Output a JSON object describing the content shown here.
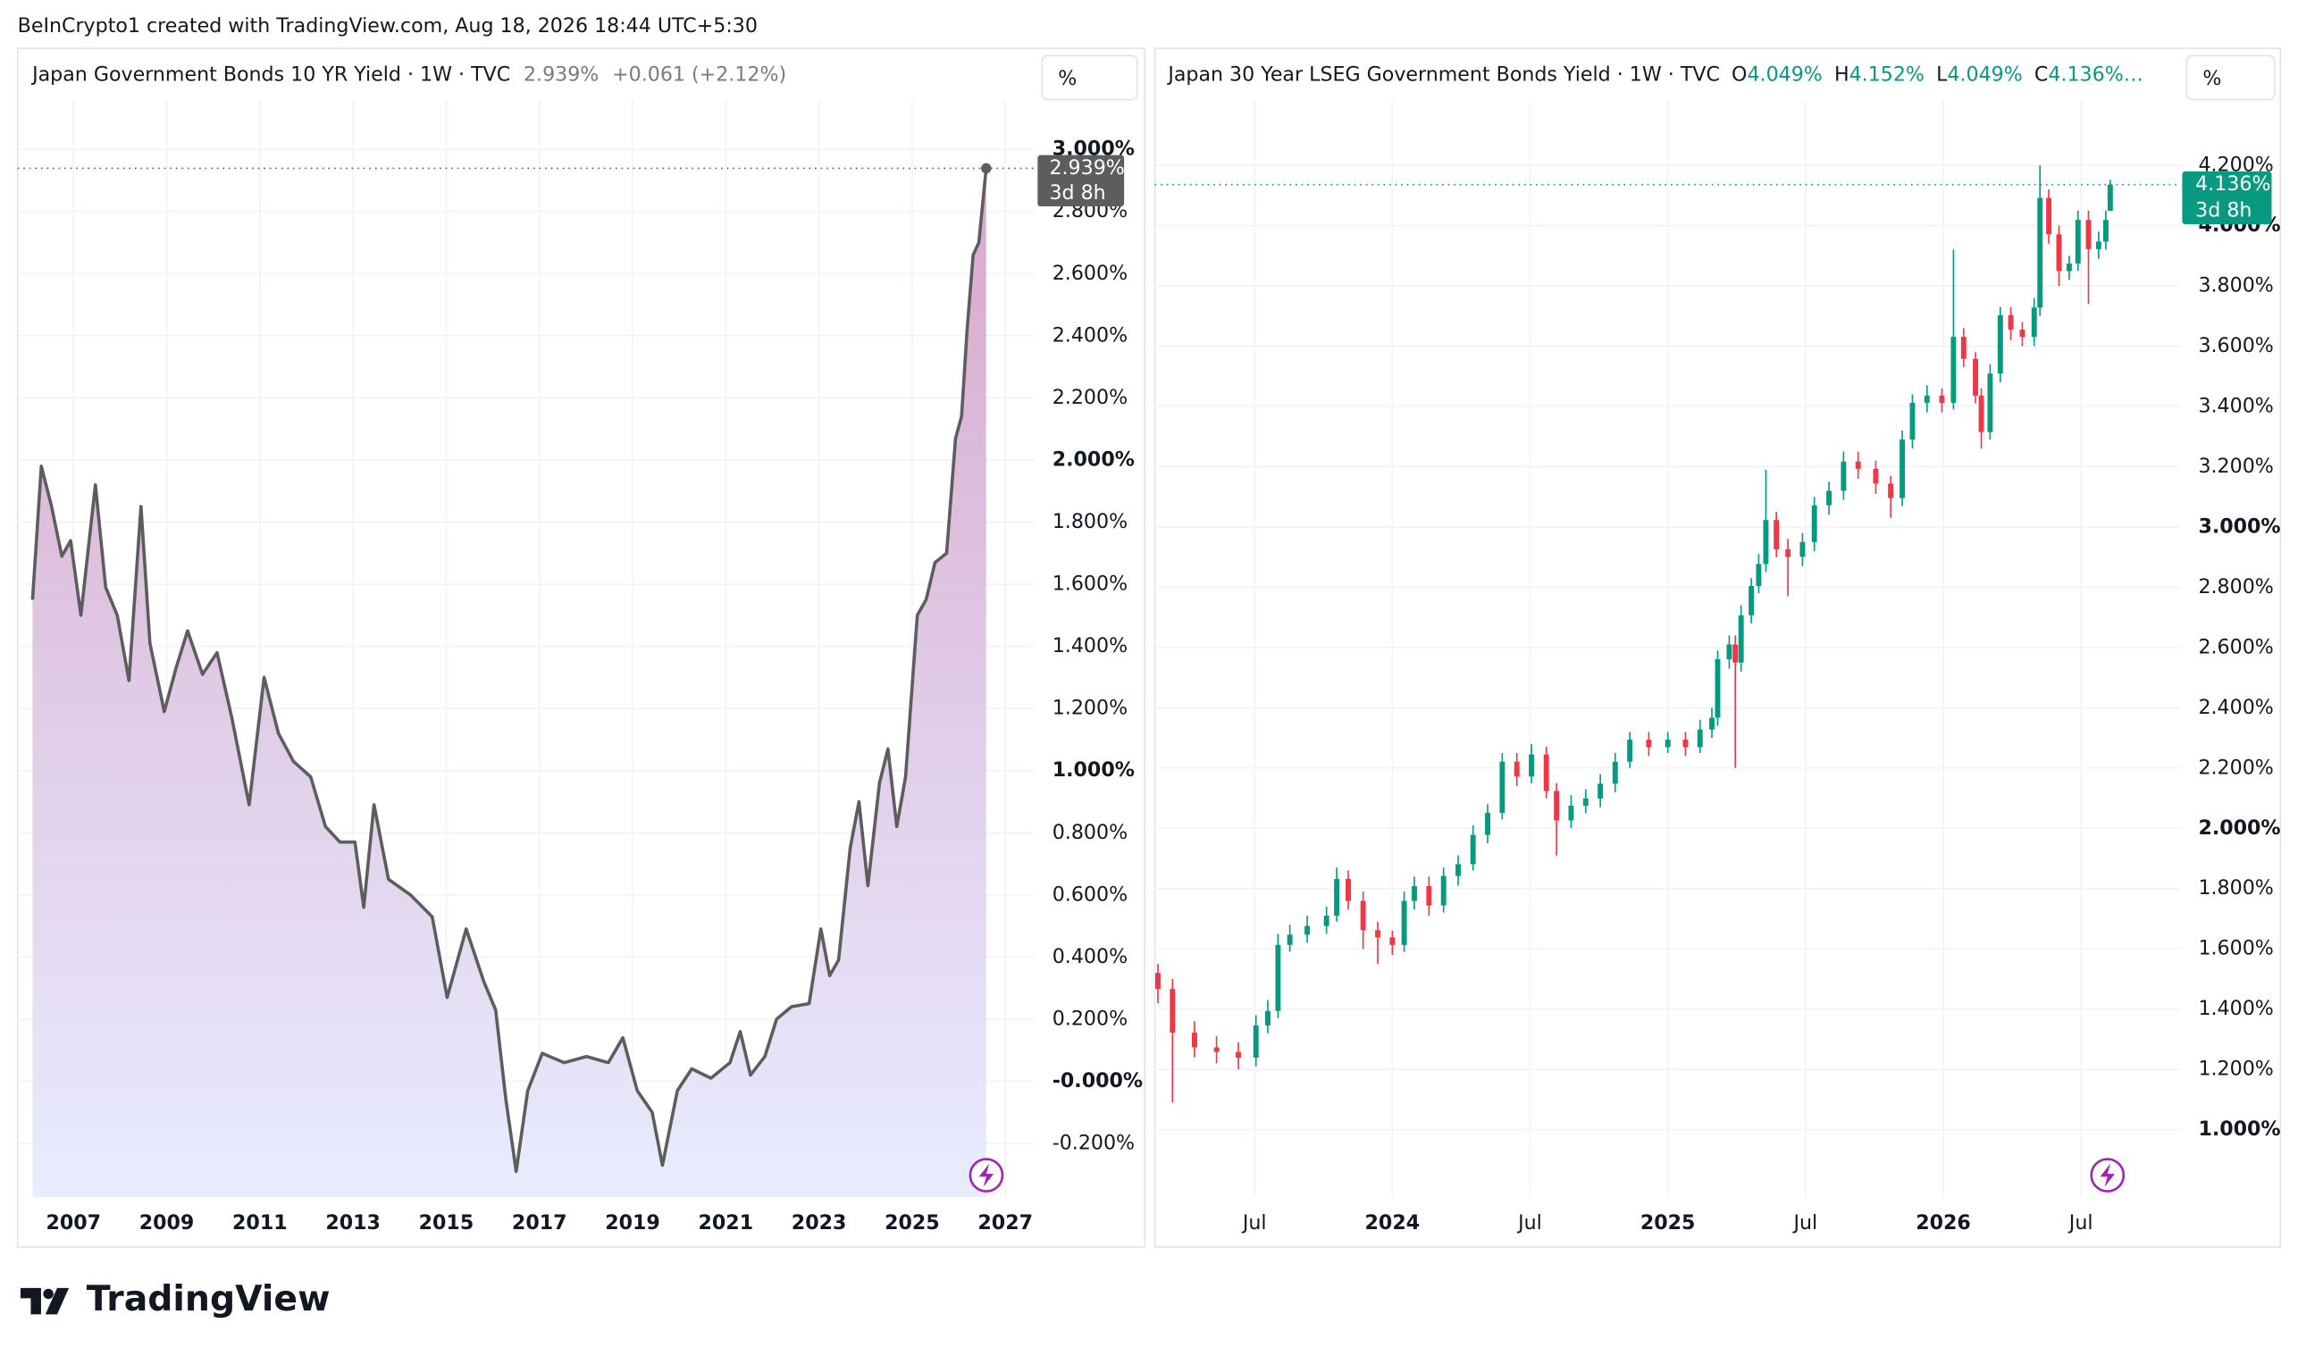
{
  "header": {
    "text": "BeInCrypto1 created with TradingView.com, Aug 18, 2026 18:44 UTC+5:30"
  },
  "footer": {
    "brand": "TradingView"
  },
  "chart_data": [
    {
      "type": "area",
      "title": "Japan Government Bonds 10 YR Yield · 1W · TVC",
      "price_label": "2.939%",
      "change": "+0.061 (+2.12%)",
      "countdown": "3d 8h",
      "unit_button": "%",
      "color": "#5d5d5d",
      "area_colors": [
        "#d8a8cc",
        "#e8ecff"
      ],
      "label_color": "#5d5d5d",
      "grid": true,
      "x": [
        2006.12,
        2006.31,
        2006.53,
        2006.75,
        2006.94,
        2007.16,
        2007.47,
        2007.69,
        2007.94,
        2008.19,
        2008.45,
        2008.64,
        2008.95,
        2009.2,
        2009.45,
        2009.77,
        2010.08,
        2010.4,
        2010.77,
        2011.09,
        2011.4,
        2011.72,
        2012.09,
        2012.41,
        2012.72,
        2013.04,
        2013.23,
        2013.45,
        2013.76,
        2014.23,
        2014.7,
        2015.02,
        2015.43,
        2015.81,
        2016.06,
        2016.28,
        2016.5,
        2016.75,
        2017.06,
        2017.53,
        2018.01,
        2018.48,
        2018.79,
        2019.1,
        2019.42,
        2019.64,
        2019.96,
        2020.27,
        2020.68,
        2021.09,
        2021.31,
        2021.53,
        2021.84,
        2022.09,
        2022.41,
        2022.79,
        2023.04,
        2023.23,
        2023.42,
        2023.67,
        2023.86,
        2024.05,
        2024.3,
        2024.48,
        2024.67,
        2024.86,
        2025.11,
        2025.3,
        2025.49,
        2025.74,
        2025.93,
        2026.06,
        2026.18,
        2026.31,
        2026.43,
        2026.59
      ],
      "values": [
        1.55,
        1.98,
        1.85,
        1.69,
        1.74,
        1.5,
        1.92,
        1.59,
        1.5,
        1.29,
        1.85,
        1.41,
        1.19,
        1.33,
        1.45,
        1.31,
        1.38,
        1.17,
        0.89,
        1.3,
        1.12,
        1.03,
        0.98,
        0.82,
        0.77,
        0.77,
        0.56,
        0.89,
        0.65,
        0.6,
        0.53,
        0.27,
        0.49,
        0.32,
        0.23,
        -0.06,
        -0.29,
        -0.03,
        0.09,
        0.06,
        0.08,
        0.06,
        0.14,
        -0.03,
        -0.1,
        -0.27,
        -0.03,
        0.04,
        0.01,
        0.06,
        0.16,
        0.02,
        0.08,
        0.2,
        0.24,
        0.25,
        0.49,
        0.34,
        0.39,
        0.75,
        0.9,
        0.63,
        0.96,
        1.07,
        0.82,
        0.98,
        1.5,
        1.55,
        1.67,
        1.7,
        2.07,
        2.14,
        2.42,
        2.66,
        2.7,
        2.939
      ],
      "xlim": [
        2005.8,
        2027.63
      ],
      "xticks": [
        2007,
        2009,
        2011,
        2013,
        2015,
        2017,
        2019,
        2021,
        2023,
        2025,
        2027
      ],
      "ylim": [
        -0.373,
        3.16
      ],
      "yticks": [
        {
          "value": -0.2,
          "label": "-0.200%"
        },
        {
          "value": 0,
          "label": "-0.000%"
        },
        {
          "value": 0.2,
          "label": "0.200%"
        },
        {
          "value": 0.4,
          "label": "0.400%"
        },
        {
          "value": 0.6,
          "label": "0.600%"
        },
        {
          "value": 0.8,
          "label": "0.800%"
        },
        {
          "value": 1.0,
          "label": "1.000%"
        },
        {
          "value": 1.2,
          "label": "1.200%"
        },
        {
          "value": 1.4,
          "label": "1.400%"
        },
        {
          "value": 1.6,
          "label": "1.600%"
        },
        {
          "value": 1.8,
          "label": "1.800%"
        },
        {
          "value": 2.0,
          "label": "2.000%"
        },
        {
          "value": 2.2,
          "label": "2.200%"
        },
        {
          "value": 2.4,
          "label": "2.400%"
        },
        {
          "value": 2.6,
          "label": "2.600%"
        },
        {
          "value": 2.8,
          "label": "2.800%"
        },
        {
          "value": 3.0,
          "label": "3.000%"
        }
      ]
    },
    {
      "type": "candlestick",
      "title": "Japan 30 Year LSEG Government Bonds Yield · 1W · TVC",
      "ohlc": [
        {
          "key": "O",
          "value": "4.049%"
        },
        {
          "key": "H",
          "value": "4.152%"
        },
        {
          "key": "L",
          "value": "4.049%"
        },
        {
          "key": "C",
          "value": "4.136%…"
        }
      ],
      "price_label": "4.136%",
      "countdown": "3d 8h",
      "unit_button": "%",
      "up_color": "#089981",
      "down_color": "#f23645",
      "grid": true,
      "x": [
        2023.149,
        2023.202,
        2023.282,
        2023.362,
        2023.441,
        2023.505,
        2023.548,
        2023.585,
        2023.628,
        2023.691,
        2023.761,
        2023.798,
        2023.84,
        2023.894,
        2023.947,
        2024.0,
        2024.043,
        2024.08,
        2024.133,
        2024.186,
        2024.239,
        2024.293,
        2024.346,
        2024.399,
        2024.452,
        2024.505,
        2024.559,
        2024.596,
        2024.649,
        2024.702,
        2024.755,
        2024.809,
        2024.862,
        2024.931,
        2025.0,
        2025.064,
        2025.117,
        2025.16,
        2025.181,
        2025.223,
        2025.245,
        2025.266,
        2025.303,
        2025.33,
        2025.356,
        2025.394,
        2025.436,
        2025.489,
        2025.532,
        2025.585,
        2025.638,
        2025.691,
        2025.755,
        2025.809,
        2025.851,
        2025.888,
        2025.941,
        2025.995,
        2026.037,
        2026.074,
        2026.117,
        2026.138,
        2026.17,
        2026.207,
        2026.245,
        2026.287,
        2026.33,
        2026.351,
        2026.383,
        2026.42,
        2026.457,
        2026.489,
        2026.527,
        2026.564,
        2026.59,
        2026.606
      ],
      "open": [
        1.52,
        1.467,
        1.322,
        1.273,
        1.258,
        1.239,
        1.346,
        1.394,
        1.613,
        1.647,
        1.676,
        1.71,
        1.832,
        1.759,
        1.662,
        1.638,
        1.613,
        1.759,
        1.808,
        1.744,
        1.842,
        1.881,
        1.978,
        2.051,
        2.221,
        2.172,
        2.245,
        2.124,
        2.026,
        2.075,
        2.099,
        2.148,
        2.221,
        2.294,
        2.269,
        2.294,
        2.269,
        2.328,
        2.367,
        2.561,
        2.61,
        2.55,
        2.707,
        2.804,
        2.877,
        3.023,
        2.926,
        2.901,
        2.95,
        3.072,
        3.12,
        3.217,
        3.193,
        3.144,
        3.096,
        3.29,
        3.412,
        3.436,
        3.412,
        3.631,
        3.558,
        3.436,
        3.315,
        3.509,
        3.703,
        3.655,
        3.631,
        3.728,
        4.092,
        3.971,
        3.849,
        3.874,
        4.019,
        3.922,
        3.947,
        4.049
      ],
      "high": [
        1.55,
        1.5,
        1.36,
        1.31,
        1.29,
        1.38,
        1.43,
        1.65,
        1.68,
        1.71,
        1.74,
        1.87,
        1.86,
        1.79,
        1.69,
        1.66,
        1.79,
        1.84,
        1.84,
        1.87,
        1.91,
        2.01,
        2.08,
        2.25,
        2.25,
        2.28,
        2.27,
        2.15,
        2.11,
        2.13,
        2.18,
        2.25,
        2.32,
        2.32,
        2.32,
        2.32,
        2.36,
        2.4,
        2.59,
        2.64,
        2.64,
        2.74,
        2.83,
        2.91,
        3.19,
        3.05,
        2.96,
        2.98,
        3.1,
        3.15,
        3.25,
        3.25,
        3.22,
        3.17,
        3.32,
        3.44,
        3.47,
        3.46,
        3.92,
        3.66,
        3.58,
        3.46,
        3.54,
        3.73,
        3.73,
        3.68,
        3.76,
        4.2,
        4.12,
        4.0,
        3.9,
        4.05,
        4.05,
        3.98,
        4.05,
        4.152
      ],
      "low": [
        1.42,
        1.09,
        1.24,
        1.22,
        1.2,
        1.21,
        1.32,
        1.37,
        1.59,
        1.62,
        1.65,
        1.69,
        1.73,
        1.6,
        1.55,
        1.58,
        1.59,
        1.73,
        1.71,
        1.72,
        1.81,
        1.86,
        1.95,
        2.03,
        2.14,
        2.15,
        2.1,
        1.91,
        2.0,
        2.05,
        2.07,
        2.12,
        2.2,
        2.24,
        2.25,
        2.24,
        2.25,
        2.3,
        2.34,
        2.53,
        2.2,
        2.52,
        2.68,
        2.78,
        2.85,
        2.9,
        2.77,
        2.87,
        2.92,
        3.04,
        3.09,
        3.16,
        3.11,
        3.03,
        3.07,
        3.26,
        3.38,
        3.38,
        3.39,
        3.53,
        3.41,
        3.26,
        3.29,
        3.48,
        3.62,
        3.6,
        3.6,
        3.7,
        3.94,
        3.8,
        3.82,
        3.85,
        3.74,
        3.89,
        3.92,
        4.049
      ],
      "close": [
        1.467,
        1.322,
        1.273,
        1.258,
        1.239,
        1.346,
        1.394,
        1.613,
        1.647,
        1.676,
        1.71,
        1.832,
        1.759,
        1.662,
        1.638,
        1.613,
        1.759,
        1.808,
        1.744,
        1.842,
        1.881,
        1.978,
        2.051,
        2.221,
        2.172,
        2.245,
        2.124,
        2.026,
        2.075,
        2.099,
        2.148,
        2.221,
        2.294,
        2.269,
        2.294,
        2.269,
        2.328,
        2.367,
        2.561,
        2.61,
        2.55,
        2.707,
        2.804,
        2.877,
        3.023,
        2.926,
        2.901,
        2.95,
        3.072,
        3.12,
        3.217,
        3.193,
        3.144,
        3.096,
        3.29,
        3.412,
        3.436,
        3.412,
        3.631,
        3.558,
        3.436,
        3.315,
        3.509,
        3.703,
        3.655,
        3.631,
        3.728,
        4.092,
        3.971,
        3.849,
        3.874,
        4.019,
        3.922,
        3.947,
        4.019,
        4.136
      ],
      "xlim": [
        2023.138,
        2026.862
      ],
      "xticks": [
        {
          "value": 2023.5,
          "label": "Jul"
        },
        2024,
        {
          "value": 2024.5,
          "label": "Jul"
        },
        2025,
        {
          "value": 2025.5,
          "label": "Jul"
        },
        2026,
        {
          "value": 2026.5,
          "label": "Jul"
        }
      ],
      "ylim": [
        0.776,
        4.418
      ],
      "yticks": [
        {
          "value": 1.0,
          "label": "1.000%"
        },
        {
          "value": 1.2,
          "label": "1.200%"
        },
        {
          "value": 1.4,
          "label": "1.400%"
        },
        {
          "value": 1.6,
          "label": "1.600%"
        },
        {
          "value": 1.8,
          "label": "1.800%"
        },
        {
          "value": 2.0,
          "label": "2.000%"
        },
        {
          "value": 2.2,
          "label": "2.200%"
        },
        {
          "value": 2.4,
          "label": "2.400%"
        },
        {
          "value": 2.6,
          "label": "2.600%"
        },
        {
          "value": 2.8,
          "label": "2.800%"
        },
        {
          "value": 3.0,
          "label": "3.000%"
        },
        {
          "value": 3.2,
          "label": "3.200%"
        },
        {
          "value": 3.4,
          "label": "3.400%"
        },
        {
          "value": 3.6,
          "label": "3.600%"
        },
        {
          "value": 3.8,
          "label": "3.800%"
        },
        {
          "value": 4.0,
          "label": "4.000%"
        },
        {
          "value": 4.2,
          "label": "4.200%"
        }
      ]
    }
  ]
}
